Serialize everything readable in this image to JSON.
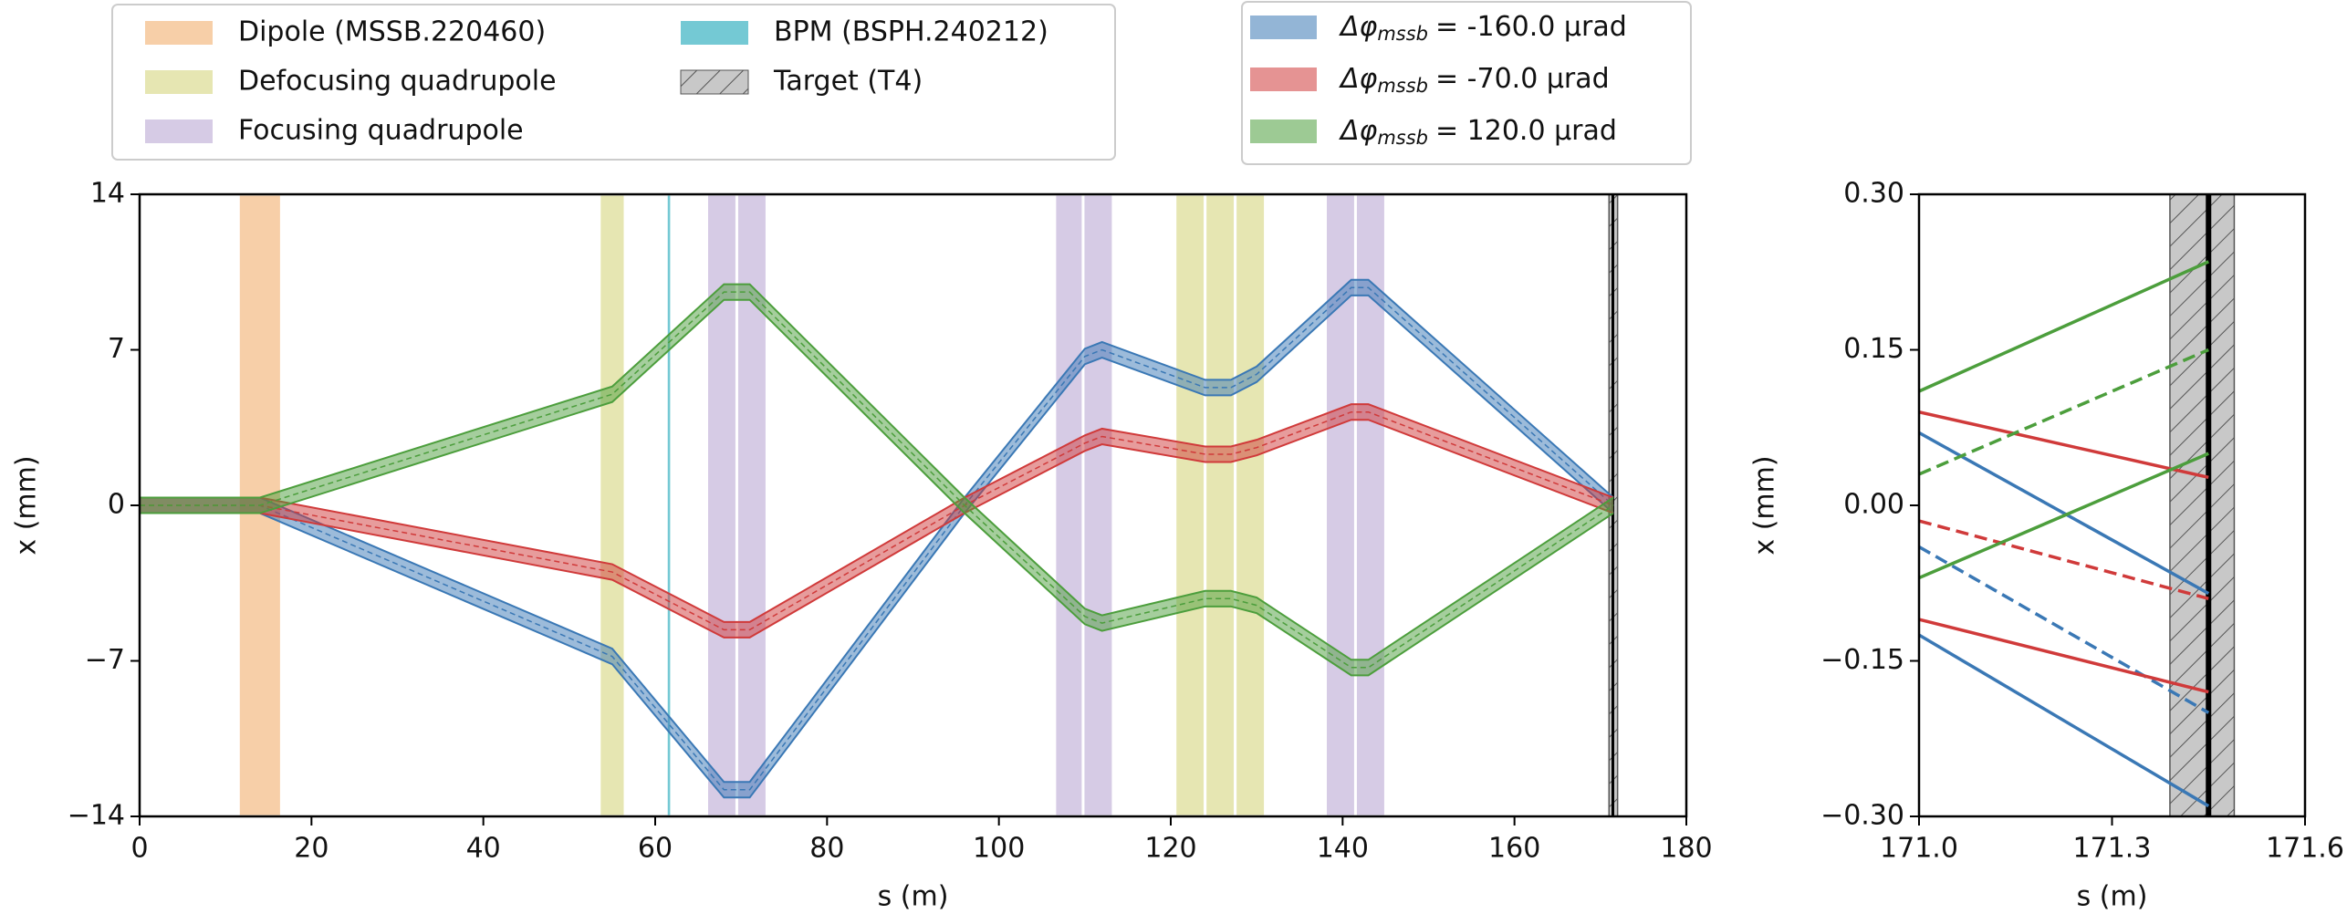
{
  "chart_data": [
    {
      "type": "line",
      "xlabel": "s (m)",
      "ylabel": "x (mm)",
      "xlim": [
        0,
        180
      ],
      "ylim": [
        -14,
        14
      ],
      "xticks": [
        0,
        20,
        40,
        60,
        80,
        100,
        120,
        140,
        160,
        180
      ],
      "yticks": [
        {
          "value": -14,
          "label": "−14"
        },
        {
          "value": -7,
          "label": "−7"
        },
        0,
        7,
        14
      ],
      "regions": [
        {
          "name": "Dipole (MSSB.220460)",
          "color": "#f7cfa8",
          "spans": [
            [
              11.5,
              16.5
            ]
          ]
        },
        {
          "name": "Defocusing quadrupole",
          "color": "#e6e6b2",
          "spans": [
            [
              53.5,
              56.5
            ],
            [
              120.5,
              124
            ],
            [
              124,
              127.5
            ],
            [
              127.5,
              131
            ]
          ]
        },
        {
          "name": "Focusing quadrupole",
          "color": "#d6cbe5",
          "spans": [
            [
              66,
              69.5
            ],
            [
              69.5,
              73
            ],
            [
              106.5,
              109.8
            ],
            [
              109.8,
              113.3
            ],
            [
              138,
              141.5
            ],
            [
              141.5,
              145
            ]
          ]
        },
        {
          "name": "BPM (BSPH.240212)",
          "color": "#74c9d4",
          "spans": [
            [
              61.3,
              61.9
            ]
          ]
        },
        {
          "name": "Target (T4)",
          "color": "#c8c8c8",
          "hatch": true,
          "line": 171.45,
          "spans": [
            [
              171,
              172
            ]
          ]
        }
      ],
      "x": [
        0,
        14,
        55,
        68,
        71,
        96,
        110,
        112,
        124,
        127,
        130,
        141,
        143,
        171.5
      ],
      "series": [
        {
          "symbol": "Δφ",
          "subscript": "mssb",
          "label": "= -160.0 µrad",
          "color": "#3a78b5",
          "spread": 0.35,
          "values": [
            0,
            0,
            -6.8,
            -12.8,
            -12.8,
            0,
            6.7,
            7.0,
            5.3,
            5.3,
            5.9,
            9.8,
            9.8,
            0
          ]
        },
        {
          "symbol": "Δφ",
          "subscript": "mssb",
          "label": "= -70.0 µrad",
          "color": "#d03a3a",
          "spread": 0.35,
          "values": [
            0,
            0,
            -3.0,
            -5.6,
            -5.6,
            0,
            2.8,
            3.1,
            2.3,
            2.3,
            2.6,
            4.2,
            4.2,
            0
          ]
        },
        {
          "symbol": "Δφ",
          "subscript": "mssb",
          "label": "= 120.0 µrad",
          "color": "#4c9e3c",
          "spread": 0.35,
          "values": [
            0,
            0,
            5.0,
            9.6,
            9.6,
            0,
            -5.0,
            -5.3,
            -4.2,
            -4.2,
            -4.5,
            -7.3,
            -7.3,
            0
          ]
        }
      ]
    },
    {
      "type": "line",
      "xlabel": "s (m)",
      "ylabel": "x (mm)",
      "xlim": [
        171.0,
        171.6
      ],
      "ylim": [
        -0.3,
        0.3
      ],
      "xticks": [
        {
          "value": 171.0,
          "label": "171.0"
        },
        {
          "value": 171.3,
          "label": "171.3"
        },
        {
          "value": 171.6,
          "label": "171.6"
        }
      ],
      "yticks": [
        {
          "value": -0.3,
          "label": "−0.30"
        },
        {
          "value": -0.15,
          "label": "−0.15"
        },
        {
          "value": 0,
          "label": "0.00"
        },
        {
          "value": 0.15,
          "label": "0.15"
        },
        {
          "value": 0.3,
          "label": "0.30"
        }
      ],
      "regions": [
        {
          "color": "#c8c8c8",
          "hatch": true,
          "line": 171.45,
          "spans": [
            [
              171.39,
              171.49
            ]
          ]
        }
      ],
      "x": [
        171.0,
        171.45
      ],
      "series": [
        {
          "color": "#3a78b5",
          "lines": [
            {
              "linestyle": "solid",
              "values": [
                0.07,
                -0.085
              ]
            },
            {
              "linestyle": "dashed",
              "values": [
                -0.04,
                -0.2
              ]
            },
            {
              "linestyle": "solid",
              "values": [
                -0.125,
                -0.29
              ]
            }
          ]
        },
        {
          "color": "#d03a3a",
          "lines": [
            {
              "linestyle": "solid",
              "values": [
                0.09,
                0.027
              ]
            },
            {
              "linestyle": "dashed",
              "values": [
                -0.015,
                -0.09
              ]
            },
            {
              "linestyle": "solid",
              "values": [
                -0.11,
                -0.18
              ]
            }
          ]
        },
        {
          "color": "#4c9e3c",
          "lines": [
            {
              "linestyle": "solid",
              "values": [
                0.11,
                0.235
              ]
            },
            {
              "linestyle": "dashed",
              "values": [
                0.03,
                0.15
              ]
            },
            {
              "linestyle": "solid",
              "values": [
                -0.07,
                0.05
              ]
            }
          ]
        }
      ]
    }
  ]
}
